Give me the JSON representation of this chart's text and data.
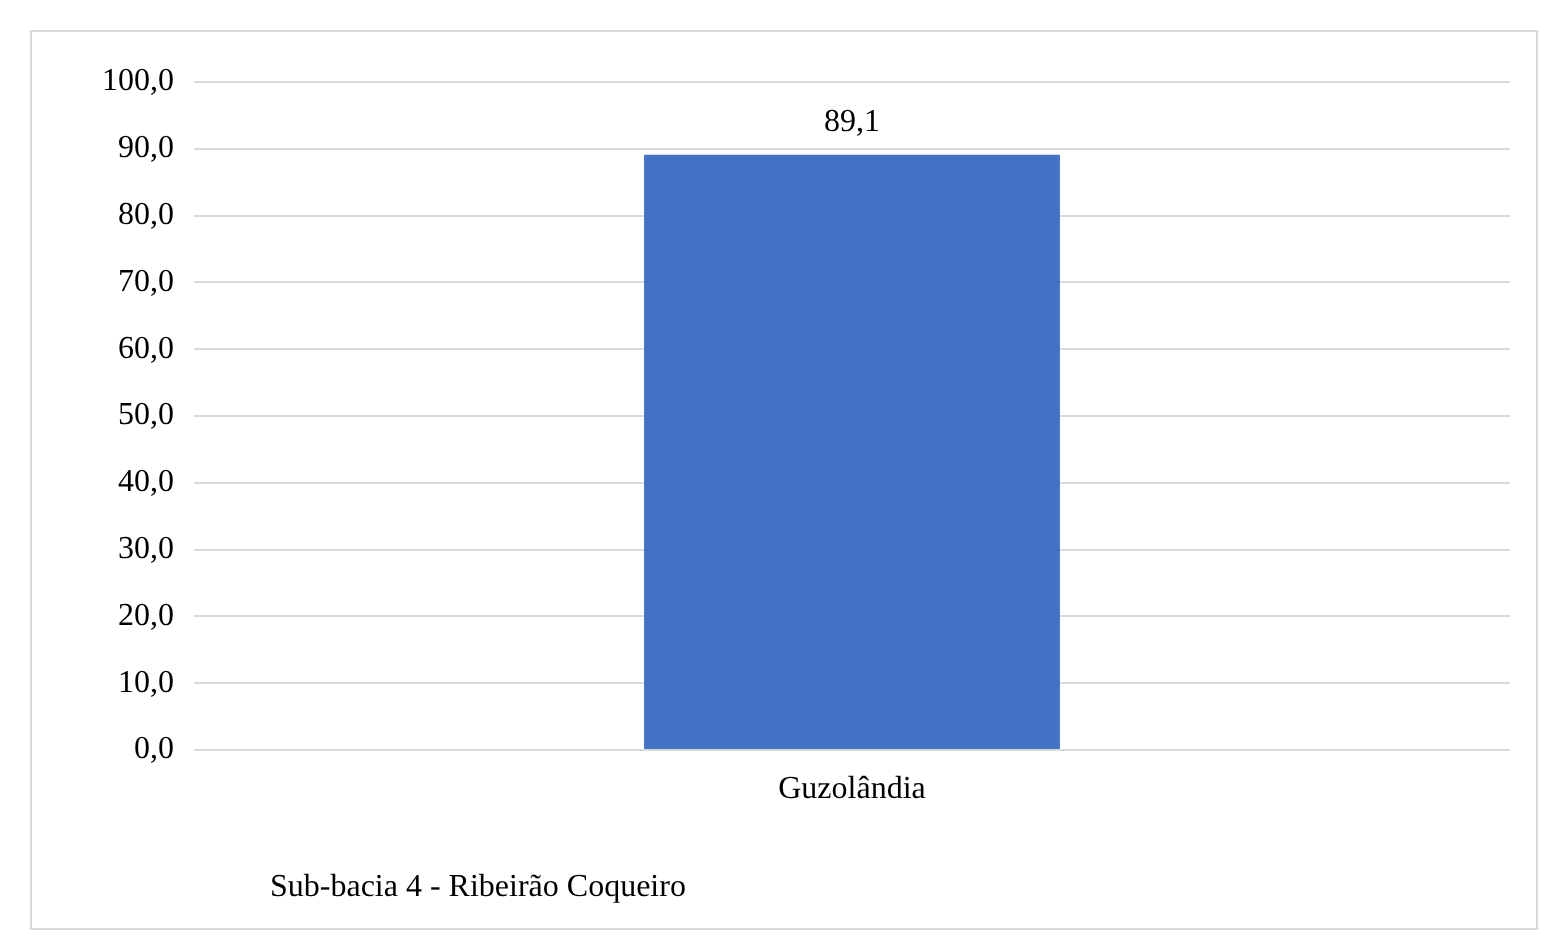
{
  "chart_data": {
    "type": "bar",
    "categories": [
      "Guzolândia"
    ],
    "series": [
      {
        "color": "#4472c4",
        "values": [
          89.1
        ],
        "value_labels": [
          "89,1"
        ]
      }
    ],
    "ylim": [
      0,
      100
    ],
    "yticks": [
      {
        "value": 0,
        "label": "0,0"
      },
      {
        "value": 10,
        "label": "10,0"
      },
      {
        "value": 20,
        "label": "20,0"
      },
      {
        "value": 30,
        "label": "30,0"
      },
      {
        "value": 40,
        "label": "40,0"
      },
      {
        "value": 50,
        "label": "50,0"
      },
      {
        "value": 60,
        "label": "60,0"
      },
      {
        "value": 70,
        "label": "70,0"
      },
      {
        "value": 80,
        "label": "80,0"
      },
      {
        "value": 90,
        "label": "90,0"
      },
      {
        "value": 100,
        "label": "100,0"
      }
    ],
    "grid": "y",
    "legend": false,
    "annotations": [
      "Sub-bacia 4 - Ribeirão Coqueiro"
    ]
  }
}
